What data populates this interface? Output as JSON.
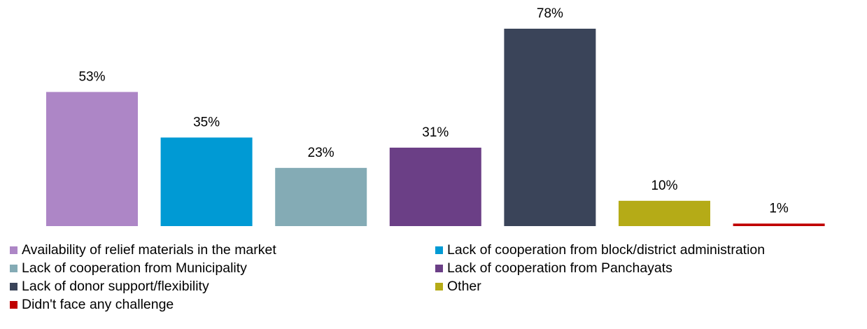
{
  "chart_data": {
    "type": "bar",
    "categories": [
      "Availability of relief materials in the market",
      "Lack of cooperation from block/district administration",
      "Lack of cooperation from Municipality",
      "Lack of cooperation from Panchayats",
      "Lack of donor support/flexibility",
      "Other",
      "Didn't face any challenge"
    ],
    "values": [
      53,
      35,
      23,
      31,
      78,
      10,
      1
    ],
    "value_labels": [
      "53%",
      "35%",
      "23%",
      "31%",
      "78%",
      "10%",
      "1%"
    ],
    "colors": [
      "#ad86c6",
      "#009ad4",
      "#84abb5",
      "#6b3f86",
      "#3a4459",
      "#b5ab17",
      "#c00000"
    ],
    "unit": "%",
    "ylim": [
      0,
      78
    ],
    "grid": false,
    "legend_position": "bottom"
  }
}
